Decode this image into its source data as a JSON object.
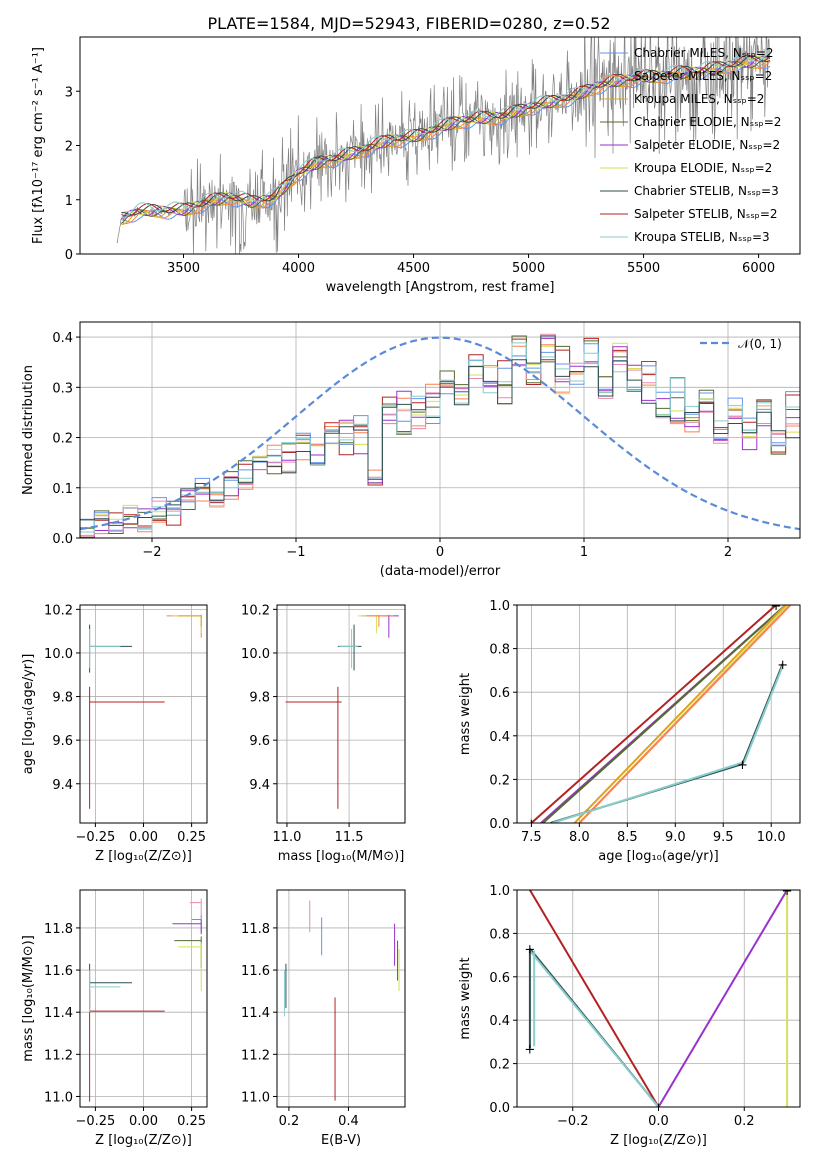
{
  "figure_title": "PLATE=1584, MJD=52943, FIBERID=0280, z=0.52",
  "colors": {
    "data_grey": "#808080",
    "chabrier_miles": "#6495ed",
    "salpeter_miles": "#ff7f50",
    "kroupa_miles": "#daa520",
    "chabrier_elodie": "#556b2f",
    "salpeter_elodie": "#9932cc",
    "kroupa_elodie": "#d4e157",
    "chabrier_stelib": "#2f4f4f",
    "salpeter_stelib": "#b22222",
    "kroupa_stelib": "#87cecb",
    "normal_curve": "#5b8bd8",
    "pink": "#e88ab0"
  },
  "chart_data": [
    {
      "id": "spectrum",
      "type": "line",
      "title": "PLATE=1584, MJD=52943, FIBERID=0280, z=0.52",
      "xlabel": "wavelength [Angstrom, rest frame]",
      "ylabel": "Flux [fλ10⁻¹⁷ erg cm⁻² s⁻¹ A⁻¹]",
      "xlim": [
        3050,
        6180
      ],
      "ylim": [
        0,
        4.0
      ],
      "xticks": [
        "3500",
        "4000",
        "4500",
        "5000",
        "5500",
        "6000"
      ],
      "xtick_values": [
        3500,
        4000,
        4500,
        5000,
        5500,
        6000
      ],
      "yticks": [
        "0",
        "1",
        "2",
        "3"
      ],
      "ytick_values": [
        0,
        1,
        2,
        3
      ],
      "legend": [
        "Chabrier MILES, N_SSP=2",
        "Salpeter MILES, N_SSP=2",
        "Kroupa MILES, N_SSP=2",
        "Chabrier ELODIE, N_SSP=2",
        "Salpeter ELODIE, N_SSP=2",
        "Kroupa ELODIE, N_SSP=2",
        "Chabrier STELIB, N_SSP=3",
        "Salpeter STELIB, N_SSP=2",
        "Kroupa STELIB, N_SSP=3"
      ],
      "legend_position": "upper right",
      "continuum": {
        "x": [
          3200,
          3230,
          3300,
          3400,
          3500,
          3600,
          3700,
          3800,
          3900,
          4000,
          4100,
          4200,
          4300,
          4400,
          4500,
          4600,
          4700,
          4800,
          4900,
          5000,
          5100,
          5200,
          5300,
          5400,
          5500,
          5600,
          5700,
          5800,
          5900,
          6000,
          6050
        ],
        "y": [
          0.0,
          0.65,
          0.78,
          0.8,
          0.8,
          0.95,
          1.05,
          0.95,
          1.05,
          1.5,
          1.7,
          1.8,
          1.95,
          2.1,
          2.15,
          2.3,
          2.45,
          2.5,
          2.55,
          2.7,
          2.8,
          2.9,
          3.1,
          3.2,
          3.25,
          3.3,
          3.35,
          3.4,
          3.5,
          3.55,
          3.6
        ]
      }
    },
    {
      "id": "residual_hist",
      "type": "line",
      "xlabel": "(data-model)/error",
      "ylabel": "Normed distribution",
      "xlim": [
        -2.5,
        2.5
      ],
      "ylim": [
        0,
        0.43
      ],
      "xticks": [
        "−2",
        "−1",
        "0",
        "1",
        "2"
      ],
      "xtick_values": [
        -2,
        -1,
        0,
        1,
        2
      ],
      "yticks": [
        "0.0",
        "0.1",
        "0.2",
        "0.3",
        "0.4"
      ],
      "ytick_values": [
        0,
        0.1,
        0.2,
        0.3,
        0.4
      ],
      "legend": [
        "𝒩(0, 1)"
      ],
      "legend_position": "upper right",
      "bin_edges_start": -2.5,
      "bin_width": 0.1,
      "series": [
        {
          "values": [
            0.02,
            0.025,
            0.03,
            0.04,
            0.035,
            0.05,
            0.06,
            0.08,
            0.09,
            0.085,
            0.1,
            0.12,
            0.14,
            0.16,
            0.15,
            0.18,
            0.17,
            0.2,
            0.22,
            0.19,
            0.12,
            0.25,
            0.27,
            0.24,
            0.29,
            0.3,
            0.28,
            0.33,
            0.32,
            0.29,
            0.36,
            0.34,
            0.39,
            0.31,
            0.35,
            0.33,
            0.3,
            0.37,
            0.32,
            0.29,
            0.26,
            0.25,
            0.23,
            0.27,
            0.21,
            0.25,
            0.2,
            0.24,
            0.19,
            0.22,
            0.21,
            0.18,
            0.2,
            0.17,
            0.19,
            0.14,
            0.16,
            0.13,
            0.15,
            0.12,
            0.14,
            0.13,
            0.11,
            0.12,
            0.13,
            0.1,
            0.11,
            0.09,
            0.1,
            0.11
          ]
        },
        {
          "values": [
            0.015,
            0.03,
            0.025,
            0.045,
            0.04,
            0.06,
            0.05,
            0.07,
            0.1,
            0.09,
            0.11,
            0.13,
            0.15,
            0.14,
            0.17,
            0.19,
            0.16,
            0.21,
            0.18,
            0.23,
            0.11,
            0.26,
            0.23,
            0.27,
            0.25,
            0.31,
            0.29,
            0.35,
            0.3,
            0.33,
            0.38,
            0.32,
            0.37,
            0.36,
            0.33,
            0.39,
            0.31,
            0.35,
            0.28,
            0.34,
            0.27,
            0.3,
            0.24,
            0.29,
            0.22,
            0.26,
            0.23,
            0.25,
            0.18,
            0.27,
            0.2,
            0.22,
            0.16,
            0.21,
            0.15,
            0.18,
            0.13,
            0.17,
            0.12,
            0.16,
            0.11,
            0.15,
            0.1,
            0.13,
            0.09,
            0.12,
            0.08,
            0.11,
            0.07,
            0.1
          ]
        }
      ],
      "normal_curve": {
        "mean": 0,
        "sigma": 1
      }
    },
    {
      "id": "age_vs_Z",
      "type": "scatter",
      "xlabel": "Z [log₁₀(Z/Z⊙)]",
      "ylabel": "age  [log₁₀(age/yr)]",
      "xlim": [
        -0.33,
        0.33
      ],
      "ylim": [
        9.22,
        10.22
      ],
      "xticks": [
        "−0.25",
        "0.00",
        "0.25"
      ],
      "xtick_values": [
        -0.25,
        0,
        0.25
      ],
      "yticks": [
        "9.4",
        "9.6",
        "9.8",
        "10.0",
        "10.2"
      ],
      "ytick_values": [
        9.4,
        9.6,
        9.8,
        10.0,
        10.2
      ]
    },
    {
      "id": "age_vs_mass",
      "type": "scatter",
      "xlabel": "mass [log₁₀(M/M⊙)]",
      "xlim": [
        10.92,
        11.95
      ],
      "ylim": [
        9.22,
        10.22
      ],
      "xticks": [
        "11.0",
        "11.5"
      ],
      "xtick_values": [
        11.0,
        11.5
      ],
      "yticks": [
        "9.4",
        "9.6",
        "9.8",
        "10.0",
        "10.2"
      ],
      "ytick_values": [
        9.4,
        9.6,
        9.8,
        10.0,
        10.2
      ]
    },
    {
      "id": "massweight_vs_age",
      "type": "line",
      "xlabel": "age  [log₁₀(age/yr)]",
      "ylabel": "mass weight",
      "xlim": [
        7.35,
        10.3
      ],
      "ylim": [
        0,
        1.0
      ],
      "xticks": [
        "7.5",
        "8.0",
        "8.5",
        "9.0",
        "9.5",
        "10.0"
      ],
      "xtick_values": [
        7.5,
        8.0,
        8.5,
        9.0,
        9.5,
        10.0
      ],
      "yticks": [
        "0.0",
        "0.2",
        "0.4",
        "0.6",
        "0.8",
        "1.0"
      ],
      "ytick_values": [
        0,
        0.2,
        0.4,
        0.6,
        0.8,
        1.0
      ]
    },
    {
      "id": "mass_vs_Z",
      "type": "scatter",
      "xlabel": "Z [log₁₀(Z/Z⊙)]",
      "ylabel": "mass [log₁₀(M/M⊙)]",
      "xlim": [
        -0.33,
        0.33
      ],
      "ylim": [
        10.95,
        11.98
      ],
      "xticks": [
        "−0.25",
        "0.00",
        "0.25"
      ],
      "xtick_values": [
        -0.25,
        0,
        0.25
      ],
      "yticks": [
        "11.0",
        "11.2",
        "11.4",
        "11.6",
        "11.8"
      ],
      "ytick_values": [
        11.0,
        11.2,
        11.4,
        11.6,
        11.8
      ]
    },
    {
      "id": "mass_vs_ebv",
      "type": "scatter",
      "xlabel": "E(B-V)",
      "xlim": [
        0.16,
        0.59
      ],
      "ylim": [
        10.95,
        11.98
      ],
      "xticks": [
        "0.2",
        "0.4"
      ],
      "xtick_values": [
        0.2,
        0.4
      ],
      "yticks": [
        "11.0",
        "11.2",
        "11.4",
        "11.6",
        "11.8"
      ],
      "ytick_values": [
        11.0,
        11.2,
        11.4,
        11.6,
        11.8
      ]
    },
    {
      "id": "massweight_vs_Z",
      "type": "line",
      "xlabel": "Z [log₁₀(Z/Z⊙)]",
      "ylabel": "mass weight",
      "xlim": [
        -0.33,
        0.33
      ],
      "ylim": [
        0,
        1.0
      ],
      "xticks": [
        "−0.2",
        "0.0",
        "0.2"
      ],
      "xtick_values": [
        -0.2,
        0,
        0.2
      ],
      "yticks": [
        "0.0",
        "0.2",
        "0.4",
        "0.6",
        "0.8",
        "1.0"
      ],
      "ytick_values": [
        0,
        0.2,
        0.4,
        0.6,
        0.8,
        1.0
      ]
    }
  ]
}
